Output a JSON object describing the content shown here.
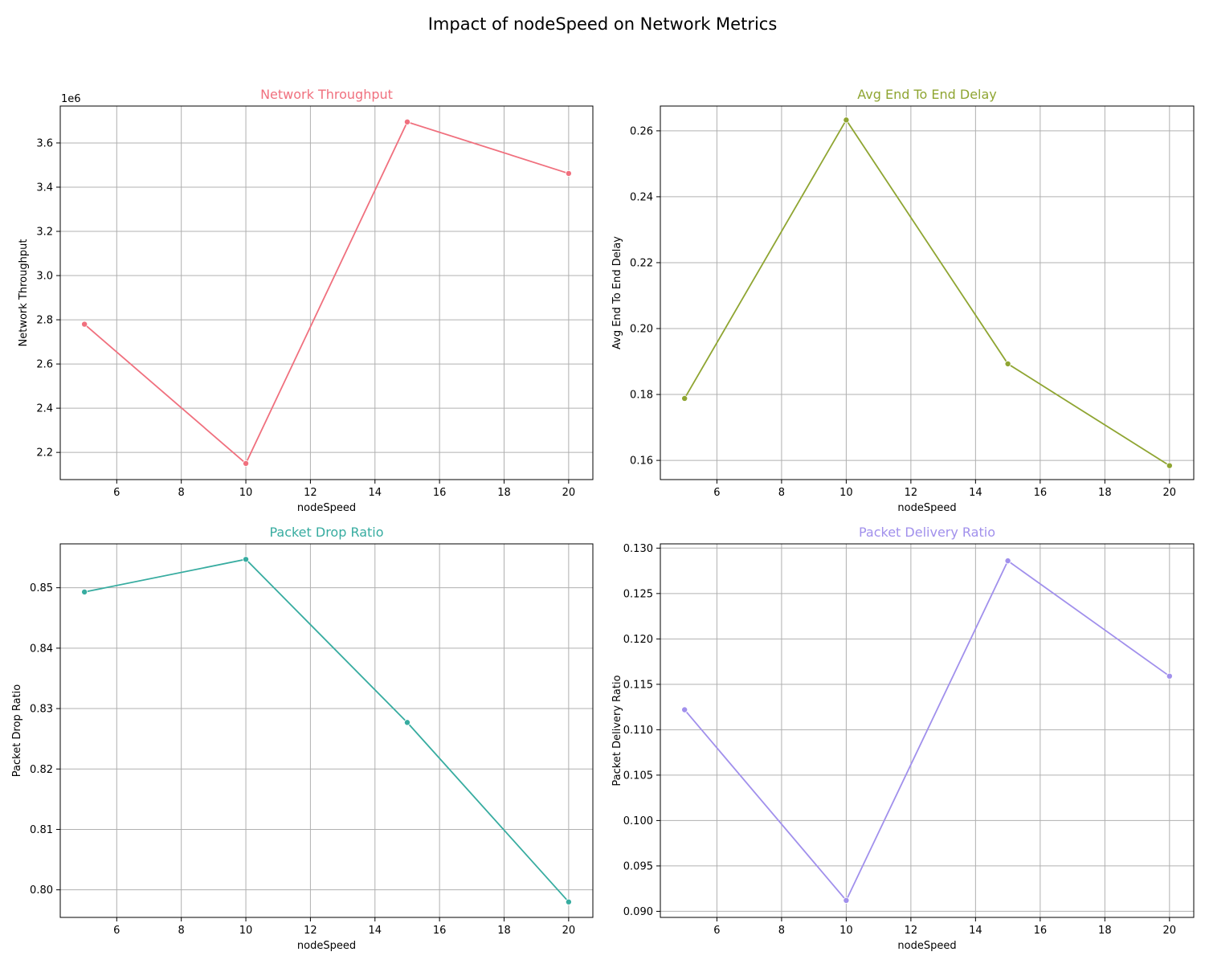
{
  "figure": {
    "title": "Impact of nodeSpeed on Network Metrics"
  },
  "chart_data": [
    {
      "type": "line",
      "title": "Network Throughput",
      "xlabel": "nodeSpeed",
      "ylabel": "Network Throughput",
      "y_offset_label": "1e6",
      "y_scale_divisor": 1000000,
      "color": "#f0707e",
      "x": [
        5,
        10,
        15,
        20
      ],
      "values": [
        2780000,
        2150000,
        3695000,
        3462000
      ],
      "xlim": [
        4.25,
        20.75
      ],
      "ylim": [
        2077000,
        3767000
      ],
      "x_ticks": [
        6,
        8,
        10,
        12,
        14,
        16,
        18,
        20
      ],
      "y_ticks": [
        2.2,
        2.4,
        2.6,
        2.8,
        3.0,
        3.2,
        3.4,
        3.6
      ],
      "y_tick_decimals": 1,
      "grid": true
    },
    {
      "type": "line",
      "title": "Avg End To End Delay",
      "xlabel": "nodeSpeed",
      "ylabel": "Avg End To End Delay",
      "color": "#8fa532",
      "x": [
        5,
        10,
        15,
        20
      ],
      "values": [
        0.1788,
        0.2633,
        0.1893,
        0.1584
      ],
      "xlim": [
        4.25,
        20.75
      ],
      "ylim": [
        0.154175,
        0.267525
      ],
      "x_ticks": [
        6,
        8,
        10,
        12,
        14,
        16,
        18,
        20
      ],
      "y_ticks": [
        0.16,
        0.18,
        0.2,
        0.22,
        0.24,
        0.26
      ],
      "y_tick_decimals": 2,
      "grid": true
    },
    {
      "type": "line",
      "title": "Packet Drop Ratio",
      "xlabel": "nodeSpeed",
      "ylabel": "Packet Drop Ratio",
      "color": "#37aca0",
      "x": [
        5,
        10,
        15,
        20
      ],
      "values": [
        0.8493,
        0.8547,
        0.8277,
        0.798
      ],
      "xlim": [
        4.25,
        20.75
      ],
      "ylim": [
        0.795435,
        0.857265
      ],
      "x_ticks": [
        6,
        8,
        10,
        12,
        14,
        16,
        18,
        20
      ],
      "y_ticks": [
        0.8,
        0.81,
        0.82,
        0.83,
        0.84,
        0.85
      ],
      "y_tick_decimals": 2,
      "grid": true
    },
    {
      "type": "line",
      "title": "Packet Delivery Ratio",
      "xlabel": "nodeSpeed",
      "ylabel": "Packet Delivery Ratio",
      "color": "#a190ec",
      "x": [
        5,
        10,
        15,
        20
      ],
      "values": [
        0.1122,
        0.0912,
        0.1286,
        0.1159
      ],
      "xlim": [
        4.25,
        20.75
      ],
      "ylim": [
        0.08933,
        0.13047
      ],
      "x_ticks": [
        6,
        8,
        10,
        12,
        14,
        16,
        18,
        20
      ],
      "y_ticks": [
        0.09,
        0.095,
        0.1,
        0.105,
        0.11,
        0.115,
        0.12,
        0.125,
        0.13
      ],
      "y_tick_decimals": 3,
      "grid": true
    }
  ]
}
